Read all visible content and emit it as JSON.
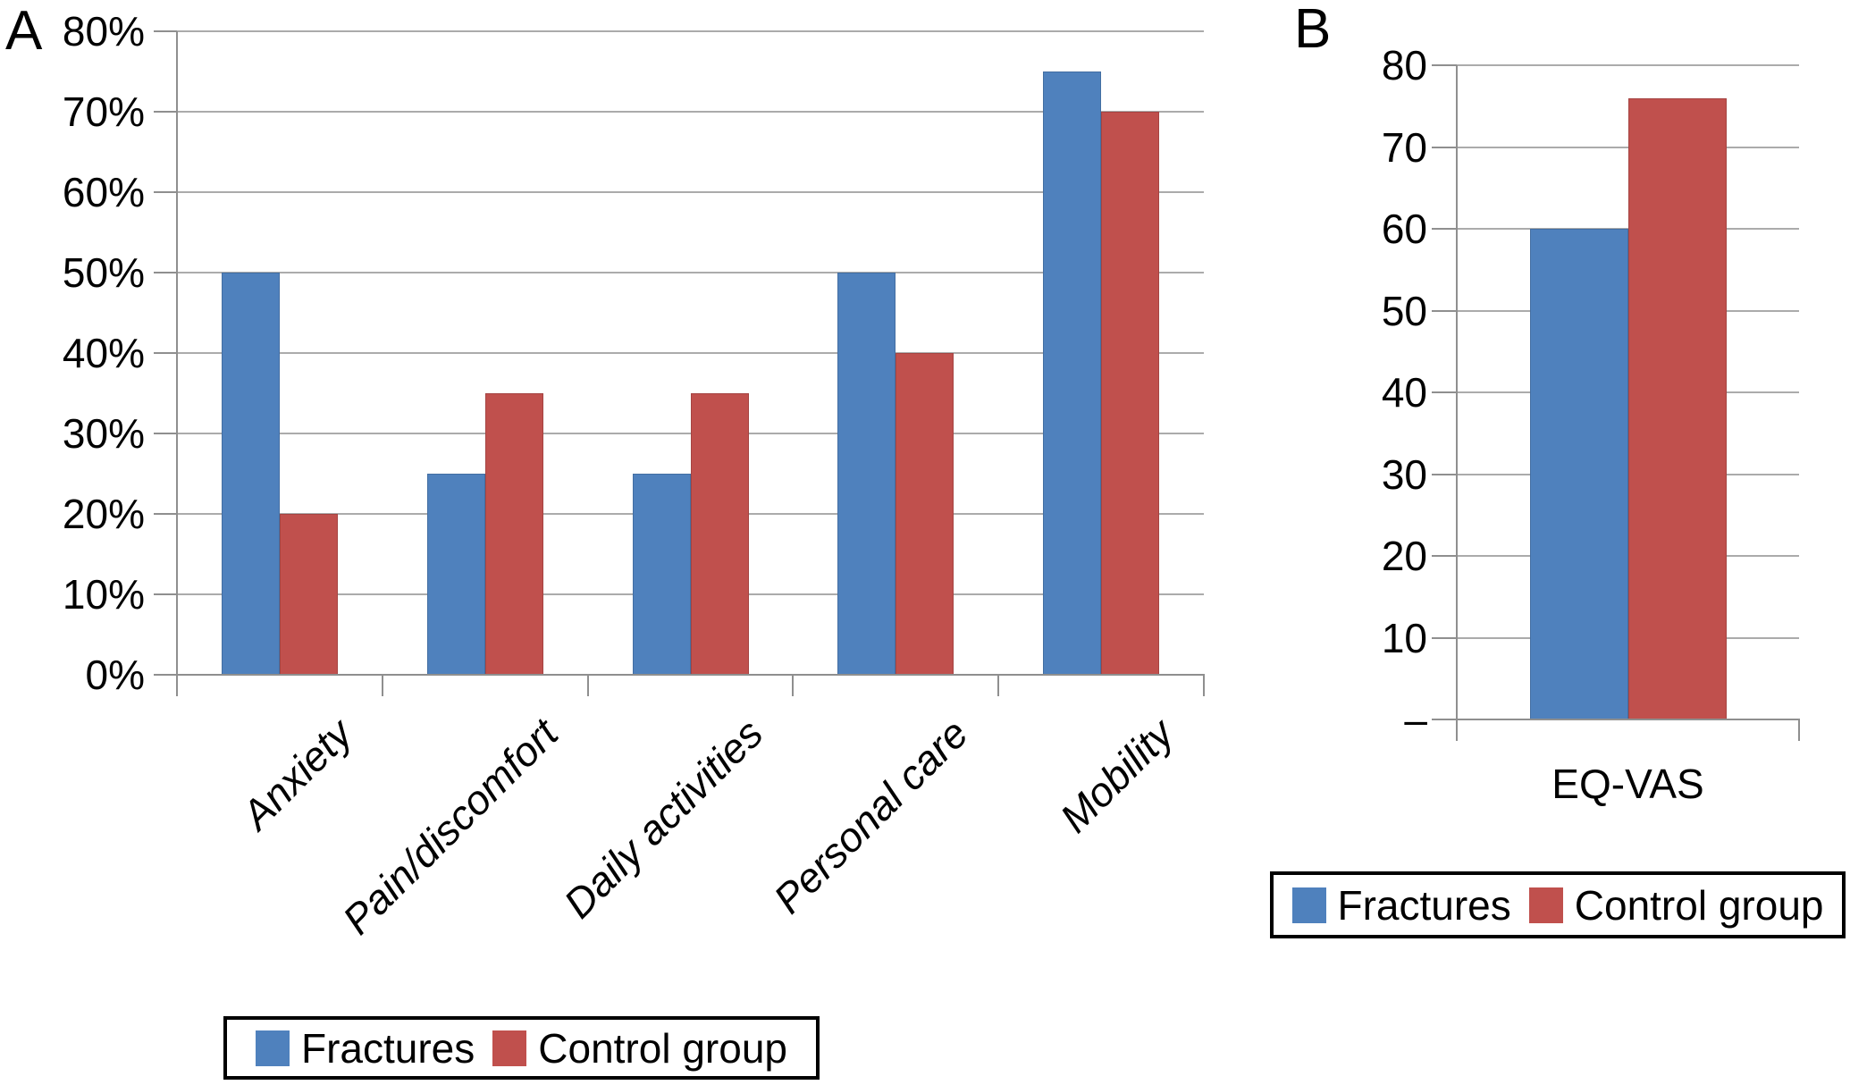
{
  "figure": {
    "panel_a_label": "A",
    "panel_b_label": "B"
  },
  "legend": {
    "fractures_label": "Fractures",
    "control_label": "Control group"
  },
  "colors": {
    "fractures_blue": "#4F81BD",
    "control_red": "#C0504D",
    "gridline_gray": "#ABABAB",
    "axis_gray": "#8F8F8F"
  },
  "chart_data": [
    {
      "id": "A",
      "type": "bar",
      "title": "",
      "xlabel": "",
      "ylabel": "",
      "unit": "percent",
      "categories": [
        "Anxiety",
        "Pain/discomfort",
        "Daily activities",
        "Personal care",
        "Mobility"
      ],
      "series": [
        {
          "name": "Fractures",
          "color": "#4F81BD",
          "values": [
            50,
            25,
            25,
            50,
            75
          ]
        },
        {
          "name": "Control group",
          "color": "#C0504D",
          "values": [
            20,
            35,
            35,
            40,
            70
          ]
        }
      ],
      "ylim": [
        0,
        80
      ],
      "y_tick_step": 10,
      "y_tick_labels": [
        "80%",
        "70%",
        "60%",
        "50%",
        "40%",
        "30%",
        "20%",
        "10%",
        "0%"
      ],
      "grid": true,
      "legend_position": "below",
      "category_label_style": "rotated-45-italic"
    },
    {
      "id": "B",
      "type": "bar",
      "title": "",
      "xlabel": "",
      "ylabel": "",
      "unit": "score",
      "categories": [
        "EQ-VAS"
      ],
      "series": [
        {
          "name": "Fractures",
          "color": "#4F81BD",
          "values": [
            60
          ]
        },
        {
          "name": "Control group",
          "color": "#C0504D",
          "values": [
            76
          ]
        }
      ],
      "ylim": [
        0,
        80
      ],
      "y_tick_step": 10,
      "y_tick_labels": [
        "80",
        "70",
        "60",
        "50",
        "40",
        "30",
        "20",
        "10",
        "–"
      ],
      "grid": true,
      "legend_position": "below",
      "category_label_style": "horizontal"
    }
  ]
}
